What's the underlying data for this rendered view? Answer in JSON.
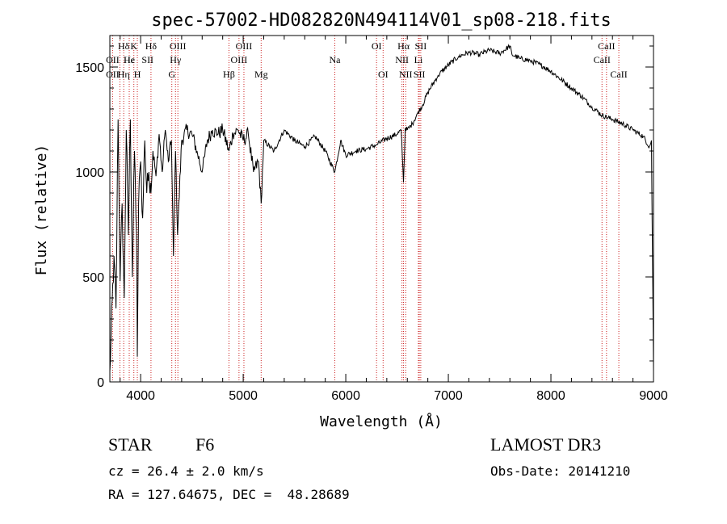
{
  "chart_data": {
    "type": "line",
    "title": "spec-57002-HD082820N494114V01_sp08-218.fits",
    "xlabel": "Wavelength (Å)",
    "ylabel": "Flux (relative)",
    "xlim": [
      3700,
      9000
    ],
    "ylim": [
      0,
      1650
    ],
    "x_ticks": [
      4000,
      5000,
      6000,
      7000,
      8000,
      9000
    ],
    "y_ticks": [
      0,
      500,
      1000,
      1500
    ],
    "grid": false,
    "series": [
      {
        "name": "spectrum",
        "x": [
          3700,
          3740,
          3760,
          3780,
          3800,
          3820,
          3840,
          3860,
          3880,
          3900,
          3920,
          3940,
          3960,
          3968,
          3980,
          4000,
          4020,
          4040,
          4060,
          4080,
          4101,
          4120,
          4150,
          4180,
          4210,
          4240,
          4270,
          4300,
          4320,
          4340,
          4360,
          4400,
          4450,
          4500,
          4550,
          4600,
          4650,
          4700,
          4750,
          4800,
          4861,
          4900,
          4950,
          5000,
          5050,
          5100,
          5150,
          5175,
          5200,
          5300,
          5400,
          5500,
          5600,
          5700,
          5800,
          5893,
          5950,
          6000,
          6100,
          6200,
          6300,
          6400,
          6500,
          6540,
          6563,
          6580,
          6600,
          6650,
          6700,
          6750,
          6800,
          6900,
          7000,
          7100,
          7200,
          7300,
          7400,
          7500,
          7600,
          7620,
          7700,
          7800,
          7900,
          8000,
          8100,
          8200,
          8300,
          8400,
          8500,
          8600,
          8700,
          8800,
          8900,
          8960,
          8980,
          9000
        ],
        "y": [
          50,
          600,
          350,
          1250,
          480,
          850,
          400,
          1200,
          700,
          1250,
          500,
          1100,
          700,
          120,
          850,
          1050,
          780,
          1150,
          900,
          1000,
          900,
          1100,
          980,
          1180,
          1000,
          1200,
          1050,
          1150,
          600,
          1100,
          700,
          1150,
          1200,
          1180,
          1100,
          1000,
          1150,
          1200,
          1180,
          1200,
          1100,
          1180,
          1200,
          1150,
          1180,
          1000,
          1050,
          850,
          1150,
          1100,
          1200,
          1150,
          1120,
          1170,
          1100,
          1000,
          1150,
          1080,
          1100,
          1110,
          1130,
          1160,
          1180,
          1200,
          950,
          1210,
          1200,
          1230,
          1280,
          1320,
          1380,
          1460,
          1510,
          1550,
          1570,
          1560,
          1580,
          1565,
          1600,
          1560,
          1540,
          1530,
          1510,
          1480,
          1440,
          1400,
          1360,
          1310,
          1270,
          1250,
          1230,
          1200,
          1170,
          1120,
          1150,
          50
        ]
      }
    ],
    "line_labels": [
      {
        "text": "Hδ",
        "x": 3835,
        "row": 0
      },
      {
        "text": "OII",
        "x": 3727,
        "row": 1
      },
      {
        "text": "OII",
        "x": 3727,
        "row": 2
      },
      {
        "text": "Hε",
        "x": 3889,
        "row": 1
      },
      {
        "text": "Hη",
        "x": 3835,
        "row": 2
      },
      {
        "text": "K",
        "x": 3934,
        "row": 0
      },
      {
        "text": "He",
        "x": 3889,
        "row": 1
      },
      {
        "text": "SII",
        "x": 4068,
        "row": 1
      },
      {
        "text": "H",
        "x": 3968,
        "row": 2
      },
      {
        "text": "Hδ",
        "x": 4101,
        "row": 0
      },
      {
        "text": "OIII",
        "x": 4363,
        "row": 0
      },
      {
        "text": "Hγ",
        "x": 4340,
        "row": 1
      },
      {
        "text": "G",
        "x": 4304,
        "row": 2
      },
      {
        "text": "Hβ",
        "x": 4861,
        "row": 2
      },
      {
        "text": "OIII",
        "x": 5007,
        "row": 0
      },
      {
        "text": "OIII",
        "x": 4959,
        "row": 1
      },
      {
        "text": "Mg",
        "x": 5175,
        "row": 2
      },
      {
        "text": "Na",
        "x": 5893,
        "row": 1
      },
      {
        "text": "OI",
        "x": 6300,
        "row": 0
      },
      {
        "text": "OI",
        "x": 6364,
        "row": 2
      },
      {
        "text": "Hα",
        "x": 6563,
        "row": 0
      },
      {
        "text": "SII",
        "x": 6731,
        "row": 0
      },
      {
        "text": "NII",
        "x": 6548,
        "row": 1
      },
      {
        "text": "Li",
        "x": 6708,
        "row": 1
      },
      {
        "text": "NII",
        "x": 6584,
        "row": 2
      },
      {
        "text": "SII",
        "x": 6717,
        "row": 2
      },
      {
        "text": "CaII",
        "x": 8542,
        "row": 0
      },
      {
        "text": "CaII",
        "x": 8498,
        "row": 1
      },
      {
        "text": "CaII",
        "x": 8662,
        "row": 2
      }
    ],
    "reference_lines_x": [
      3727,
      3798,
      3835,
      3889,
      3934,
      3968,
      4101,
      4304,
      4340,
      4363,
      4861,
      4959,
      5007,
      5175,
      5893,
      6300,
      6364,
      6548,
      6563,
      6584,
      6708,
      6717,
      6731,
      8498,
      8542,
      8662
    ]
  },
  "info": {
    "object_class": "STAR",
    "subclass": "F6",
    "survey": "LAMOST DR3",
    "cz": "cz = 26.4 ± 2.0 km/s",
    "obs_date": "Obs-Date: 20141210",
    "coords": "RA = 127.64675, DEC =  48.28689"
  },
  "colors": {
    "spectrum": "#000000",
    "reference_line": "#cc2222",
    "axes": "#000000",
    "background": "#ffffff"
  }
}
